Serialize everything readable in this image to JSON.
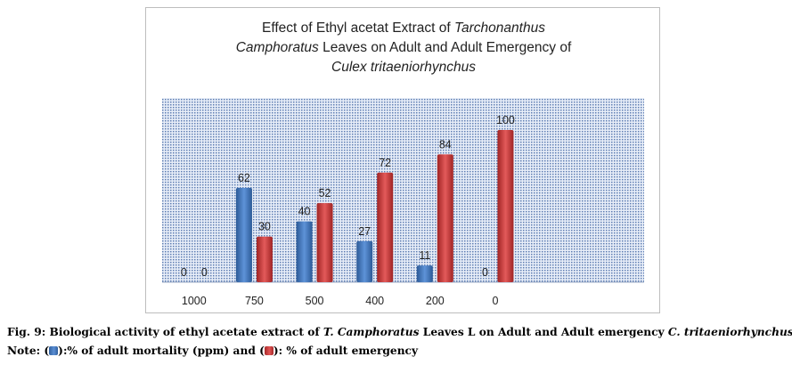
{
  "chart_data": {
    "type": "bar",
    "title_parts": [
      {
        "text": "Effect of Ethyl acetat Extract of ",
        "italic": false
      },
      {
        "text": "Tarchonanthus",
        "italic": true
      },
      {
        "text": "Camphoratus",
        "italic": true
      },
      {
        "text": " Leaves on Adult and Adult Emergency of",
        "italic": false
      },
      {
        "text": "Culex tritaeniorhynchus",
        "italic": true
      }
    ],
    "categories": [
      "1000",
      "750",
      "500",
      "400",
      "200",
      "0"
    ],
    "series": [
      {
        "name": "% of adult mortality (ppm)",
        "color": "#4a7fc4",
        "values": [
          0,
          62,
          40,
          27,
          11,
          0
        ]
      },
      {
        "name": "% of adult emergency",
        "color": "#c83a3a",
        "values": [
          0,
          30,
          52,
          72,
          84,
          100
        ]
      }
    ],
    "ylim": [
      0,
      100
    ],
    "xlabel": "",
    "ylabel": "",
    "grid": false,
    "plot_background": "#aebfda"
  },
  "caption": {
    "fig_label": "Fig. 9: Biological activity of ethyl acetate extract of ",
    "species_1": "T. Camphoratus",
    "middle": " Leaves L on Adult and Adult emergency ",
    "species_2": "C. tritaeniorhynchus",
    "note_prefix": "Note: (",
    "note_mid": "):% of adult mortality (ppm) and (",
    "note_suffix": "): % of adult emergency"
  }
}
